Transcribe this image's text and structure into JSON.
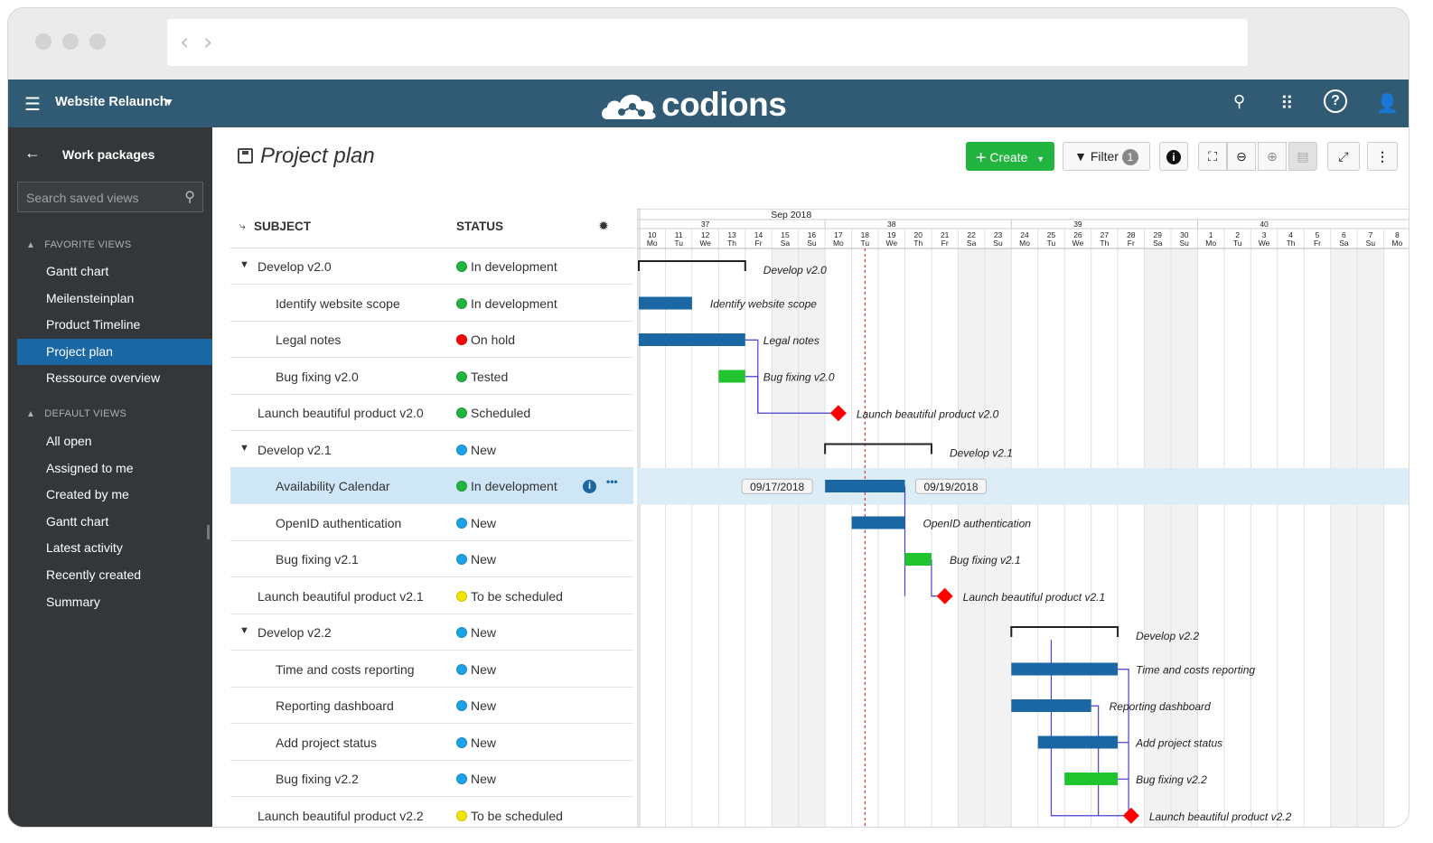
{
  "browser": {
    "back": "‹",
    "forward": "›"
  },
  "header": {
    "project": "Website Relaunch",
    "logo": "codions",
    "icons": [
      "hamburger-icon",
      "search-icon",
      "grid-icon",
      "help-icon",
      "user-icon"
    ]
  },
  "sidebar": {
    "title": "Work packages",
    "search_placeholder": "Search saved views",
    "favorite_label": "FAVORITE VIEWS",
    "favorites": [
      "Gantt chart",
      "Meilensteinplan",
      "Product Timeline",
      "Project plan",
      "Ressource overview"
    ],
    "default_label": "DEFAULT VIEWS",
    "defaults": [
      "All open",
      "Assigned to me",
      "Created by me",
      "Gantt chart",
      "Latest activity",
      "Recently created",
      "Summary"
    ],
    "active": "Project plan"
  },
  "main": {
    "title": "Project plan",
    "create_label": "Create",
    "filter_label": "Filter",
    "filter_count": "1",
    "col_subject": "SUBJECT",
    "col_status": "STATUS"
  },
  "status_colors": {
    "In development": "#21b43e",
    "On hold": "#ff0000",
    "Tested": "#21b43e",
    "Scheduled": "#21b43e",
    "New": "#1aa3e8",
    "To be scheduled": "#f2e600"
  },
  "rows": [
    {
      "subject": "Develop v2.0",
      "status": "In development",
      "level": 1,
      "group": true
    },
    {
      "subject": "Identify website scope",
      "status": "In development",
      "level": 2
    },
    {
      "subject": "Legal notes",
      "status": "On hold",
      "level": 2
    },
    {
      "subject": "Bug fixing v2.0",
      "status": "Tested",
      "level": 2
    },
    {
      "subject": "Launch beautiful product v2.0",
      "status": "Scheduled",
      "level": 1
    },
    {
      "subject": "Develop v2.1",
      "status": "New",
      "level": 1,
      "group": true
    },
    {
      "subject": "Availability Calendar",
      "status": "In development",
      "level": 2,
      "selected": true
    },
    {
      "subject": "OpenID authentication",
      "status": "New",
      "level": 2
    },
    {
      "subject": "Bug fixing v2.1",
      "status": "New",
      "level": 2
    },
    {
      "subject": "Launch beautiful product v2.1",
      "status": "To be scheduled",
      "level": 1
    },
    {
      "subject": "Develop v2.2",
      "status": "New",
      "level": 1,
      "group": true
    },
    {
      "subject": "Time and costs reporting",
      "status": "New",
      "level": 2
    },
    {
      "subject": "Reporting dashboard",
      "status": "New",
      "level": 2
    },
    {
      "subject": "Add project status",
      "status": "New",
      "level": 2
    },
    {
      "subject": "Bug fixing v2.2",
      "status": "New",
      "level": 2
    },
    {
      "subject": "Launch beautiful product v2.2",
      "status": "To be scheduled",
      "level": 1
    }
  ],
  "gantt": {
    "month": "Sep 2018",
    "weeks": [
      "37",
      "38",
      "39",
      "40"
    ],
    "days": [
      {
        "d": "10",
        "w": "Mo"
      },
      {
        "d": "11",
        "w": "Tu"
      },
      {
        "d": "12",
        "w": "We"
      },
      {
        "d": "13",
        "w": "Th"
      },
      {
        "d": "14",
        "w": "Fr"
      },
      {
        "d": "15",
        "w": "Sa"
      },
      {
        "d": "16",
        "w": "Su"
      },
      {
        "d": "17",
        "w": "Mo"
      },
      {
        "d": "18",
        "w": "Tu"
      },
      {
        "d": "19",
        "w": "We"
      },
      {
        "d": "20",
        "w": "Th"
      },
      {
        "d": "21",
        "w": "Fr"
      },
      {
        "d": "22",
        "w": "Sa"
      },
      {
        "d": "23",
        "w": "Su"
      },
      {
        "d": "24",
        "w": "Mo"
      },
      {
        "d": "25",
        "w": "Tu"
      },
      {
        "d": "26",
        "w": "We"
      },
      {
        "d": "27",
        "w": "Th"
      },
      {
        "d": "28",
        "w": "Fr"
      },
      {
        "d": "29",
        "w": "Sa"
      },
      {
        "d": "30",
        "w": "Su"
      },
      {
        "d": "1",
        "w": "Mo"
      },
      {
        "d": "2",
        "w": "Tu"
      },
      {
        "d": "3",
        "w": "We"
      },
      {
        "d": "4",
        "w": "Th"
      },
      {
        "d": "5",
        "w": "Fr"
      },
      {
        "d": "6",
        "w": "Sa"
      },
      {
        "d": "7",
        "w": "Su"
      },
      {
        "d": "8",
        "w": "Mo"
      }
    ],
    "today_index": 8,
    "selected_start": "09/17/2018",
    "selected_end": "09/19/2018",
    "bars": [
      {
        "label": "Develop v2.0",
        "type": "group",
        "start": 0,
        "end": 4
      },
      {
        "label": "Identify website scope",
        "type": "task",
        "color": "#1a67a3",
        "start": 0,
        "end": 2
      },
      {
        "label": "Legal notes",
        "type": "task",
        "color": "#1a67a3",
        "start": 0,
        "end": 4
      },
      {
        "label": "Bug fixing v2.0",
        "type": "task",
        "color": "#21c42e",
        "start": 3,
        "end": 4
      },
      {
        "label": "Launch beautiful product v2.0",
        "type": "milestone",
        "color": "#ff0000",
        "start": 7.5
      },
      {
        "label": "Develop v2.1",
        "type": "group",
        "start": 7,
        "end": 11
      },
      {
        "label": "Availability Calendar",
        "type": "task",
        "color": "#1a67a3",
        "start": 7,
        "end": 10
      },
      {
        "label": "OpenID authentication",
        "type": "task",
        "color": "#1a67a3",
        "start": 8,
        "end": 10
      },
      {
        "label": "Bug fixing v2.1",
        "type": "task",
        "color": "#21c42e",
        "start": 10,
        "end": 11
      },
      {
        "label": "Launch beautiful product v2.1",
        "type": "milestone",
        "color": "#ff0000",
        "start": 11.5
      },
      {
        "label": "Develop v2.2",
        "type": "group",
        "start": 14,
        "end": 18
      },
      {
        "label": "Time and costs reporting",
        "type": "task",
        "color": "#1a67a3",
        "start": 14,
        "end": 18
      },
      {
        "label": "Reporting dashboard",
        "type": "task",
        "color": "#1a67a3",
        "start": 14,
        "end": 17
      },
      {
        "label": "Add project status",
        "type": "task",
        "color": "#1a67a3",
        "start": 15,
        "end": 18
      },
      {
        "label": "Bug fixing v2.2",
        "type": "task",
        "color": "#21c42e",
        "start": 16,
        "end": 18
      },
      {
        "label": "Launch beautiful product v2.2",
        "type": "milestone",
        "color": "#ff0000",
        "start": 18.5
      }
    ]
  }
}
